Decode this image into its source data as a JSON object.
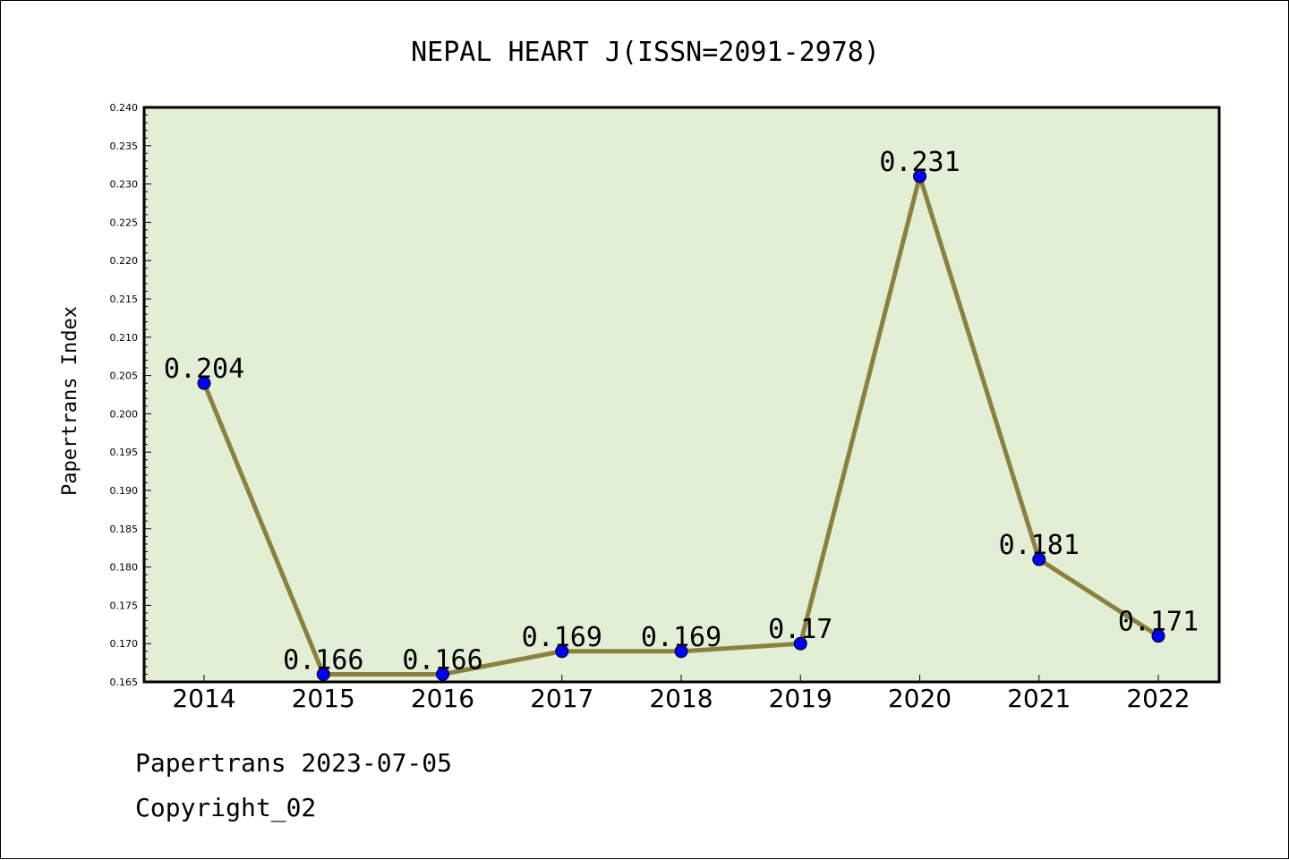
{
  "chart_data": {
    "type": "line",
    "title": "NEPAL HEART J(ISSN=2091-2978)",
    "xlabel": "",
    "ylabel": "Papertrans Index",
    "categories": [
      "2014",
      "2015",
      "2016",
      "2017",
      "2018",
      "2019",
      "2020",
      "2021",
      "2022"
    ],
    "series": [
      {
        "values": [
          0.204,
          0.166,
          0.166,
          0.169,
          0.169,
          0.17,
          0.231,
          0.181,
          0.171
        ],
        "labels": [
          "0.204",
          "0.166",
          "0.166",
          "0.169",
          "0.169",
          "0.17",
          "0.231",
          "0.181",
          "0.171"
        ],
        "line_color": "#8b8040",
        "marker_color": "#0000ff"
      }
    ],
    "ylim": [
      0.165,
      0.24
    ],
    "yticks": [
      "0.165",
      "0.170",
      "0.175",
      "0.180",
      "0.185",
      "0.190",
      "0.195",
      "0.200",
      "0.205",
      "0.210",
      "0.215",
      "0.220",
      "0.225",
      "0.230",
      "0.235",
      "0.240"
    ],
    "grid": false,
    "plot_background": "#e2efd5"
  },
  "footer": {
    "line1": "Papertrans 2023-07-05",
    "line2": "Copyright_02"
  }
}
